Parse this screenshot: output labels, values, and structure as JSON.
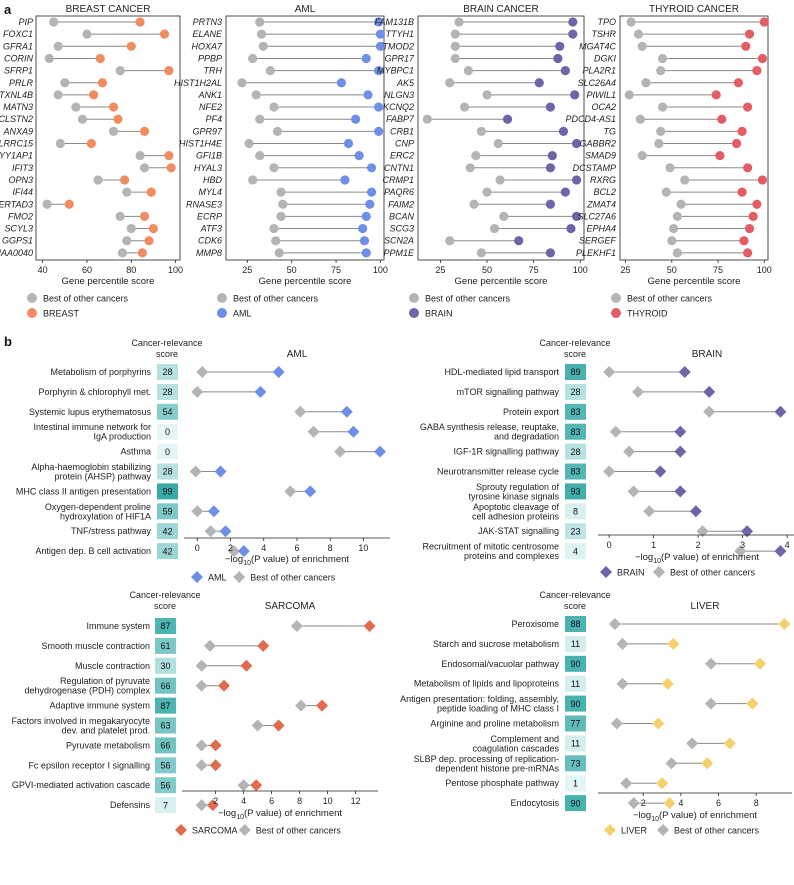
{
  "panel_labels": {
    "a": "a",
    "b": "b"
  },
  "colors": {
    "other": "#b4b4b4",
    "breast": "#f08c60",
    "aml": "#6d8fe8",
    "brain": "#7063a8",
    "thyroid": "#e45c64",
    "sarcoma": "#e06c4e",
    "liver": "#f5d06a",
    "score_dark": "#36aaa8",
    "score_light": "#e6f6f6",
    "connector": "#888888"
  },
  "chart_data": [
    {
      "type": "dumbbell",
      "title": "BREAST CANCER",
      "xlabel": "Gene percentile score",
      "xlim": [
        37,
        102
      ],
      "xticks": [
        40,
        60,
        80,
        100
      ],
      "legend": [
        {
          "name": "Best of other cancers",
          "role": "other"
        },
        {
          "name": "BREAST",
          "role": "primary"
        }
      ],
      "primary_color_key": "breast",
      "rows": [
        {
          "label": "PIP",
          "other": 45,
          "primary": 84
        },
        {
          "label": "FOXC1",
          "other": 60,
          "primary": 95
        },
        {
          "label": "GFRA1",
          "other": 47,
          "primary": 80
        },
        {
          "label": "CORIN",
          "other": 43,
          "primary": 66
        },
        {
          "label": "SFRP1",
          "other": 75,
          "primary": 97
        },
        {
          "label": "PRLR",
          "other": 50,
          "primary": 67
        },
        {
          "label": "TXNL4B",
          "other": 47,
          "primary": 63
        },
        {
          "label": "MATN3",
          "other": 55,
          "primary": 72
        },
        {
          "label": "CLSTN2",
          "other": 58,
          "primary": 74
        },
        {
          "label": "ANXA9",
          "other": 72,
          "primary": 86
        },
        {
          "label": "LRRC15",
          "other": 48,
          "primary": 62
        },
        {
          "label": "YY1AP1",
          "other": 84,
          "primary": 97
        },
        {
          "label": "IFIT3",
          "other": 86,
          "primary": 98
        },
        {
          "label": "OPN3",
          "other": 65,
          "primary": 77
        },
        {
          "label": "IFI44",
          "other": 78,
          "primary": 89
        },
        {
          "label": "SERTAD3",
          "other": 42,
          "primary": 52
        },
        {
          "label": "FMO2",
          "other": 75,
          "primary": 86
        },
        {
          "label": "SCYL3",
          "other": 80,
          "primary": 90
        },
        {
          "label": "GGPS1",
          "other": 78,
          "primary": 88
        },
        {
          "label": "KIAA0040",
          "other": 76,
          "primary": 85
        }
      ]
    },
    {
      "type": "dumbbell",
      "title": "AML",
      "xlabel": "Gene percentile score",
      "xlim": [
        13,
        102
      ],
      "xticks": [
        25,
        50,
        75,
        100
      ],
      "legend": [
        {
          "name": "Best of other cancers",
          "role": "other"
        },
        {
          "name": "AML",
          "role": "primary"
        }
      ],
      "primary_color_key": "aml",
      "rows": [
        {
          "label": "PRTN3",
          "other": 32,
          "primary": 99
        },
        {
          "label": "ELANE",
          "other": 33,
          "primary": 100
        },
        {
          "label": "HOXA7",
          "other": 34,
          "primary": 100
        },
        {
          "label": "PPBP",
          "other": 28,
          "primary": 92
        },
        {
          "label": "TRH",
          "other": 38,
          "primary": 99
        },
        {
          "label": "HIST1H2AL",
          "other": 22,
          "primary": 78
        },
        {
          "label": "ANK1",
          "other": 30,
          "primary": 93
        },
        {
          "label": "NFE2",
          "other": 40,
          "primary": 99
        },
        {
          "label": "PF4",
          "other": 32,
          "primary": 86
        },
        {
          "label": "GPR97",
          "other": 42,
          "primary": 99
        },
        {
          "label": "HIST1H4E",
          "other": 26,
          "primary": 82
        },
        {
          "label": "GFI1B",
          "other": 32,
          "primary": 88
        },
        {
          "label": "HYAL3",
          "other": 40,
          "primary": 95
        },
        {
          "label": "HBD",
          "other": 28,
          "primary": 80
        },
        {
          "label": "MYL4",
          "other": 44,
          "primary": 95
        },
        {
          "label": "RNASE3",
          "other": 45,
          "primary": 94
        },
        {
          "label": "ECRP",
          "other": 44,
          "primary": 92
        },
        {
          "label": "ATF3",
          "other": 40,
          "primary": 90
        },
        {
          "label": "CDK6",
          "other": 41,
          "primary": 91
        },
        {
          "label": "MMP8",
          "other": 43,
          "primary": 92
        }
      ]
    },
    {
      "type": "dumbbell",
      "title": "BRAIN CANCER",
      "xlabel": "Gene percentile score",
      "xlim": [
        13,
        102
      ],
      "xticks": [
        25,
        50,
        75,
        100
      ],
      "legend": [
        {
          "name": "Best of other cancers",
          "role": "other"
        },
        {
          "name": "BRAIN",
          "role": "primary"
        }
      ],
      "primary_color_key": "brain",
      "rows": [
        {
          "label": "FAM131B",
          "other": 35,
          "primary": 96
        },
        {
          "label": "TTYH1",
          "other": 33,
          "primary": 96
        },
        {
          "label": "TMOD2",
          "other": 33,
          "primary": 89
        },
        {
          "label": "GPR17",
          "other": 33,
          "primary": 88
        },
        {
          "label": "MYBPC1",
          "other": 40,
          "primary": 92
        },
        {
          "label": "AK5",
          "other": 30,
          "primary": 78
        },
        {
          "label": "NLGN3",
          "other": 50,
          "primary": 97
        },
        {
          "label": "KCNQ2",
          "other": 38,
          "primary": 84
        },
        {
          "label": "FABP7",
          "other": 18,
          "primary": 61
        },
        {
          "label": "CRB1",
          "other": 47,
          "primary": 91
        },
        {
          "label": "CNP",
          "other": 56,
          "primary": 98
        },
        {
          "label": "ERC2",
          "other": 44,
          "primary": 85
        },
        {
          "label": "CNTN1",
          "other": 41,
          "primary": 84
        },
        {
          "label": "CRMP1",
          "other": 57,
          "primary": 98
        },
        {
          "label": "PAQR6",
          "other": 50,
          "primary": 92
        },
        {
          "label": "FAIM2",
          "other": 43,
          "primary": 84
        },
        {
          "label": "BCAN",
          "other": 59,
          "primary": 98
        },
        {
          "label": "SCG3",
          "other": 54,
          "primary": 95
        },
        {
          "label": "SCN2A",
          "other": 30,
          "primary": 67
        },
        {
          "label": "PPM1E",
          "other": 47,
          "primary": 84
        }
      ]
    },
    {
      "type": "dumbbell",
      "title": "THYROID CANCER",
      "xlabel": "Gene percentile score",
      "xlim": [
        22,
        102
      ],
      "xticks": [
        25,
        50,
        75,
        100
      ],
      "legend": [
        {
          "name": "Best of other cancers",
          "role": "other"
        },
        {
          "name": "THYROID",
          "role": "primary"
        }
      ],
      "primary_color_key": "thyroid",
      "rows": [
        {
          "label": "TPO",
          "other": 28,
          "primary": 100
        },
        {
          "label": "TSHR",
          "other": 32,
          "primary": 92
        },
        {
          "label": "MGAT4C",
          "other": 34,
          "primary": 90
        },
        {
          "label": "DGKI",
          "other": 45,
          "primary": 99
        },
        {
          "label": "PLA2R1",
          "other": 44,
          "primary": 96
        },
        {
          "label": "SLC26A4",
          "other": 36,
          "primary": 86
        },
        {
          "label": "PIWIL1",
          "other": 27,
          "primary": 74
        },
        {
          "label": "OCA2",
          "other": 45,
          "primary": 91
        },
        {
          "label": "PDCD4-AS1",
          "other": 33,
          "primary": 77
        },
        {
          "label": "TG",
          "other": 44,
          "primary": 88
        },
        {
          "label": "GABBR2",
          "other": 43,
          "primary": 85
        },
        {
          "label": "SMAD9",
          "other": 34,
          "primary": 76
        },
        {
          "label": "DCSTAMP",
          "other": 49,
          "primary": 91
        },
        {
          "label": "RXRG",
          "other": 57,
          "primary": 99
        },
        {
          "label": "BCL2",
          "other": 47,
          "primary": 88
        },
        {
          "label": "ZMAT4",
          "other": 55,
          "primary": 96
        },
        {
          "label": "SLC27A6",
          "other": 53,
          "primary": 94
        },
        {
          "label": "EPHA4",
          "other": 51,
          "primary": 92
        },
        {
          "label": "SERGEF",
          "other": 50,
          "primary": 89
        },
        {
          "label": "PLEKHF1",
          "other": 53,
          "primary": 91
        }
      ]
    },
    {
      "type": "dumbbell",
      "title": "AML",
      "score_header": "Cancer-relevance score",
      "xlabel": "−log10(P value) of enrichment",
      "xlim": [
        -0.8,
        11.6
      ],
      "xticks": [
        0,
        2,
        4,
        6,
        8,
        10
      ],
      "legend": [
        {
          "name": "AML",
          "role": "primary"
        },
        {
          "name": "Best of other cancers",
          "role": "other"
        }
      ],
      "primary_color_key": "aml",
      "rows": [
        {
          "label": "Metabolism of porphyrins",
          "score": 28,
          "other": 0.3,
          "primary": 4.9
        },
        {
          "label": "Porphyrin & chlorophyll met.",
          "score": 28,
          "other": 0.0,
          "primary": 3.8
        },
        {
          "label": "Systemic lupus erythematosus",
          "score": 54,
          "other": 6.2,
          "primary": 9.0
        },
        {
          "label": "Intestinal immune network for|IgA production",
          "score": 0,
          "other": 7.0,
          "primary": 9.4
        },
        {
          "label": "Asthma",
          "score": 0,
          "other": 8.6,
          "primary": 11.0
        },
        {
          "label": "Alpha-haemoglobin stabilizing|protein (AHSP) pathway",
          "score": 28,
          "other": -0.1,
          "primary": 1.4
        },
        {
          "label": "MHC class II antigen presentation",
          "score": 99,
          "other": 5.6,
          "primary": 6.8
        },
        {
          "label": "Oxygen-dependent proline|hydroxylation of HIF1A",
          "score": 59,
          "other": 0.0,
          "primary": 1.0
        },
        {
          "label": "TNF/stress pathway",
          "score": 42,
          "other": 0.8,
          "primary": 1.7
        },
        {
          "label": "Antigen dep. B cell activation",
          "score": 42,
          "other": 2.2,
          "primary": 2.8
        }
      ]
    },
    {
      "type": "dumbbell",
      "title": "BRAIN",
      "score_header": "Cancer-relevance score",
      "xlabel": "−log10(P value) of enrichment",
      "xlim": [
        -0.25,
        4.2
      ],
      "xticks": [
        0,
        1,
        2,
        3,
        4
      ],
      "legend": [
        {
          "name": "BRAIN",
          "role": "primary"
        },
        {
          "name": "Best of other cancers",
          "role": "other"
        }
      ],
      "primary_color_key": "brain",
      "rows": [
        {
          "label": "HDL-mediated lipid transport",
          "score": 89,
          "other": 0.0,
          "primary": 1.7
        },
        {
          "label": "mTOR signalling pathway",
          "score": 28,
          "other": 0.65,
          "primary": 2.25
        },
        {
          "label": "Protein export",
          "score": 83,
          "other": 2.25,
          "primary": 3.85
        },
        {
          "label": "GABA synthesis release, reuptake,|and degradation",
          "score": 83,
          "other": 0.15,
          "primary": 1.6
        },
        {
          "label": "IGF-1R signalling pathway",
          "score": 28,
          "other": 0.45,
          "primary": 1.6
        },
        {
          "label": "Neurotransmitter release cycle",
          "score": 83,
          "other": 0.0,
          "primary": 1.15
        },
        {
          "label": "Sprouty regulation of|tyrosine kinase signals",
          "score": 93,
          "other": 0.55,
          "primary": 1.6
        },
        {
          "label": "Apoptotic cleavage of|cell adhesion proteins",
          "score": 8,
          "other": 0.9,
          "primary": 1.95
        },
        {
          "label": "JAK-STAT signalling",
          "score": 23,
          "other": 2.1,
          "primary": 3.1
        },
        {
          "label": "Recruitment of mitotic centrosome|proteins and complexes",
          "score": 4,
          "other": 2.95,
          "primary": 3.85
        }
      ]
    },
    {
      "type": "dumbbell",
      "title": "SARCOMA",
      "score_header": "Cancer-relevance score",
      "xlabel": "−log10(P value) of enrichment",
      "xlim": [
        -0.4,
        13.6
      ],
      "xticks": [
        2,
        4,
        6,
        8,
        10,
        12
      ],
      "legend": [
        {
          "name": "SARCOMA",
          "role": "primary"
        },
        {
          "name": "Best of other cancers",
          "role": "other"
        }
      ],
      "primary_color_key": "sarcoma",
      "rows": [
        {
          "label": "Immune system",
          "score": 87,
          "other": 7.8,
          "primary": 13.0
        },
        {
          "label": "Smooth muscle contraction",
          "score": 61,
          "other": 1.6,
          "primary": 5.4
        },
        {
          "label": "Muscle contraction",
          "score": 30,
          "other": 1.0,
          "primary": 4.2
        },
        {
          "label": "Regulation of pyruvate|dehydrogenase (PDH) complex",
          "score": 66,
          "other": 1.0,
          "primary": 2.6
        },
        {
          "label": "Adaptive immune system",
          "score": 87,
          "other": 8.1,
          "primary": 9.6
        },
        {
          "label": "Factors involved in megakaryocyte|dev. and platelet prod.",
          "score": 63,
          "other": 5.0,
          "primary": 6.5
        },
        {
          "label": "Pyruvate metabolism",
          "score": 66,
          "other": 1.0,
          "primary": 2.0
        },
        {
          "label": "Fc epsilon receptor I signalling",
          "score": 56,
          "other": 1.0,
          "primary": 2.0
        },
        {
          "label": "GPVI-mediated activation cascade",
          "score": 56,
          "other": 4.0,
          "primary": 4.9
        },
        {
          "label": "Defensins",
          "score": 7,
          "other": 1.0,
          "primary": 1.8
        }
      ]
    },
    {
      "type": "dumbbell",
      "title": "LIVER",
      "score_header": "Cancer-relevance score",
      "xlabel": "−log10(P value) of enrichment",
      "xlim": [
        -0.4,
        9.9
      ],
      "xticks": [
        2,
        4,
        6,
        8
      ],
      "legend": [
        {
          "name": "LIVER",
          "role": "primary"
        },
        {
          "name": "Best of other cancers",
          "role": "other"
        }
      ],
      "primary_color_key": "liver",
      "rows": [
        {
          "label": "Peroxisome",
          "score": 88,
          "other": 0.5,
          "primary": 9.5
        },
        {
          "label": "Starch and sucrose metabolism",
          "score": 11,
          "other": 0.9,
          "primary": 3.6
        },
        {
          "label": "Endosomal/vacuolar pathway",
          "score": 90,
          "other": 5.6,
          "primary": 8.2
        },
        {
          "label": "Metabolism of lipids and lipoproteins",
          "score": 11,
          "other": 0.9,
          "primary": 3.3
        },
        {
          "label": "Antigen presentation: folding, assembly,|peptide loading of MHC class I",
          "score": 90,
          "other": 5.6,
          "primary": 7.8
        },
        {
          "label": "Arginine and proline metabolism",
          "score": 77,
          "other": 0.6,
          "primary": 2.8
        },
        {
          "label": "Complement and|coagulation cascades",
          "score": 11,
          "other": 4.6,
          "primary": 6.6
        },
        {
          "label": "SLBP dep. processing of replication-|dependent histone pre-mRNAs",
          "score": 73,
          "other": 3.5,
          "primary": 5.4
        },
        {
          "label": "Pentose phosphate pathway",
          "score": 1,
          "other": 1.1,
          "primary": 3.0
        },
        {
          "label": "Endocytosis",
          "score": 90,
          "other": 1.5,
          "primary": 3.4
        }
      ]
    }
  ]
}
